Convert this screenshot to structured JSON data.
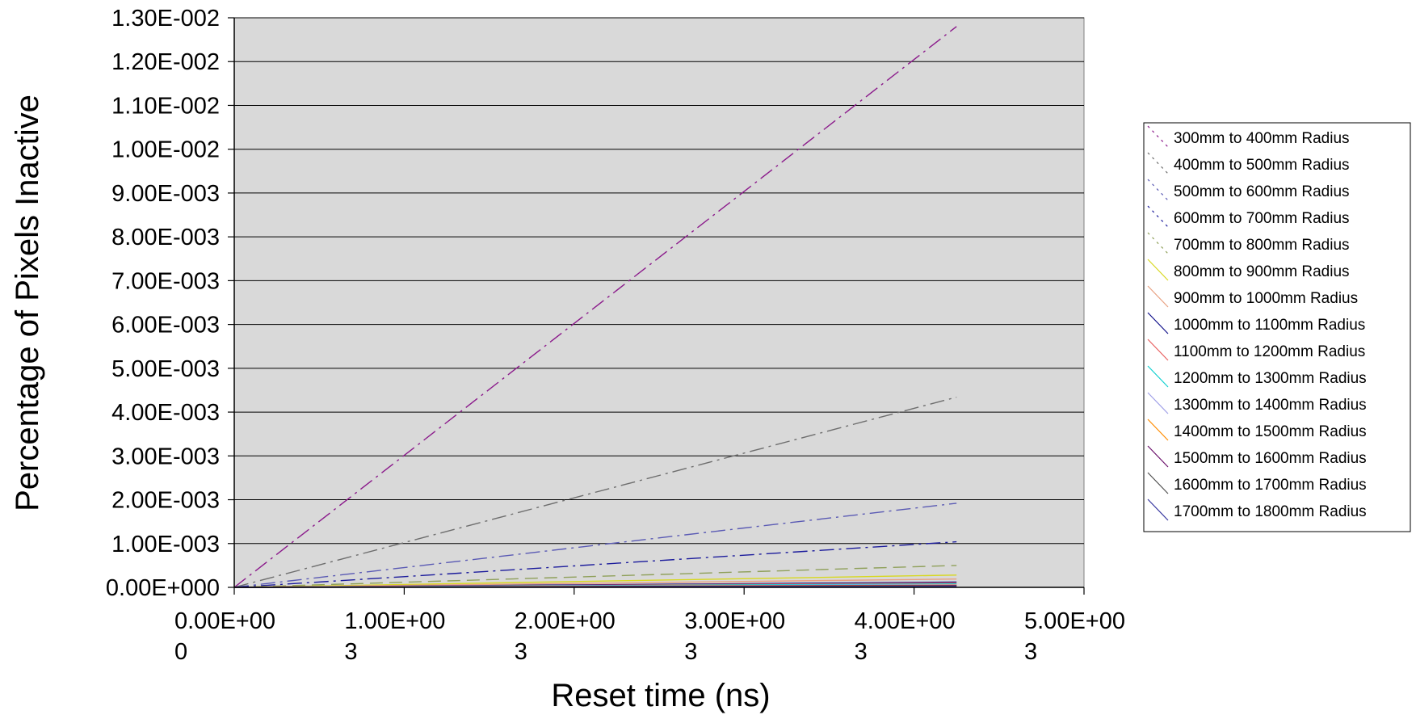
{
  "chart_data": {
    "type": "line",
    "title": "",
    "xlabel": "Reset time (ns)",
    "ylabel": "Percentage of Pixels Inactive",
    "xlim": [
      0,
      5000
    ],
    "ylim": [
      0,
      0.013
    ],
    "x_ticks": [
      {
        "line1": "0.00E+00",
        "line2": "0"
      },
      {
        "line1": "1.00E+00",
        "line2": "3"
      },
      {
        "line1": "2.00E+00",
        "line2": "3"
      },
      {
        "line1": "3.00E+00",
        "line2": "3"
      },
      {
        "line1": "4.00E+00",
        "line2": "3"
      },
      {
        "line1": "5.00E+00",
        "line2": "3"
      }
    ],
    "y_ticks": [
      "0.00E+000",
      "1.00E-003",
      "2.00E-003",
      "3.00E-003",
      "4.00E-003",
      "5.00E-003",
      "6.00E-003",
      "7.00E-003",
      "8.00E-003",
      "9.00E-003",
      "1.00E-002",
      "1.10E-002",
      "1.20E-002",
      "1.30E-002"
    ],
    "grid": "horizontal",
    "legend_position": "right",
    "plot_background": "#d9d9d9",
    "x": [
      0,
      4250
    ],
    "series": [
      {
        "name": "300mm to 400mm Radius",
        "color": "#8b1a8b",
        "dash": "18,6,3,6",
        "values": [
          0,
          0.0128
        ]
      },
      {
        "name": "400mm to 500mm Radius",
        "color": "#6e6e6e",
        "dash": "18,6,3,6",
        "values": [
          0,
          0.00434
        ]
      },
      {
        "name": "500mm to 600mm Radius",
        "color": "#5a5ab4",
        "dash": "18,6,3,6",
        "values": [
          0,
          0.00192
        ]
      },
      {
        "name": "600mm to 700mm Radius",
        "color": "#1c1c9c",
        "dash": "18,6,3,6",
        "values": [
          0,
          0.00104
        ]
      },
      {
        "name": "700mm to 800mm Radius",
        "color": "#8fa05a",
        "dash": "16,8",
        "values": [
          0,
          0.0005
        ]
      },
      {
        "name": "800mm to 900mm Radius",
        "color": "#d8d820",
        "dash": "",
        "values": [
          0,
          0.00028
        ]
      },
      {
        "name": "900mm to 1000mm Radius",
        "color": "#e8a080",
        "dash": "",
        "values": [
          0,
          0.00019
        ]
      },
      {
        "name": "1000mm to 1100mm Radius",
        "color": "#10108a",
        "dash": "",
        "values": [
          0,
          0.00012
        ]
      },
      {
        "name": "1100mm to 1200mm Radius",
        "color": "#e86060",
        "dash": "",
        "values": [
          0,
          0.0001
        ]
      },
      {
        "name": "1200mm to 1300mm Radius",
        "color": "#10d0d0",
        "dash": "",
        "values": [
          0,
          8e-05
        ]
      },
      {
        "name": "1300mm to 1400mm Radius",
        "color": "#a0a0e8",
        "dash": "",
        "values": [
          0,
          6e-05
        ]
      },
      {
        "name": "1400mm to 1500mm Radius",
        "color": "#ff8c00",
        "dash": "",
        "values": [
          0,
          5e-05
        ]
      },
      {
        "name": "1500mm to 1600mm Radius",
        "color": "#6a0f6a",
        "dash": "",
        "values": [
          0,
          4e-05
        ]
      },
      {
        "name": "1600mm to 1700mm Radius",
        "color": "#505050",
        "dash": "",
        "values": [
          0,
          3e-05
        ]
      },
      {
        "name": "1700mm to 1800mm Radius",
        "color": "#3838a0",
        "dash": "",
        "values": [
          0,
          2e-05
        ]
      }
    ]
  }
}
